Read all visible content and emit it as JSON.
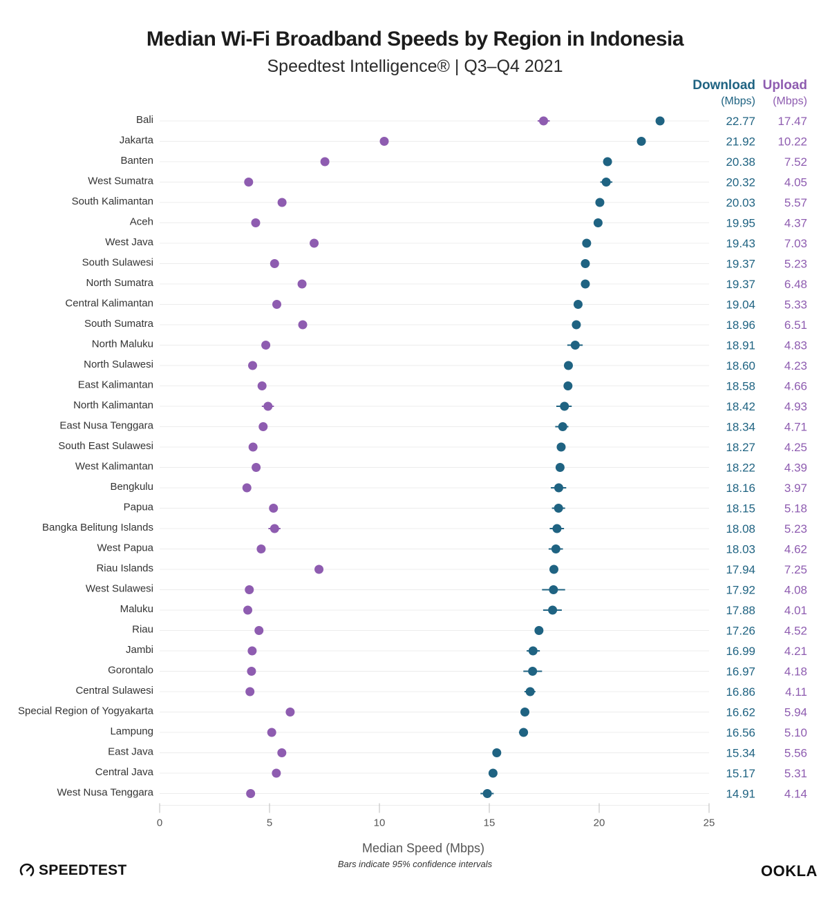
{
  "chart_data": {
    "type": "dot-range",
    "title": "Median Wi-Fi Broadband Speeds by Region in Indonesia",
    "subtitle": "Speedtest Intelligence® | Q3–Q4 2021",
    "xlabel": "Median Speed (Mbps)",
    "xlim": [
      0,
      25
    ],
    "xticks": [
      0,
      5,
      10,
      15,
      20,
      25
    ],
    "footnote": "Bars indicate 95% confidence intervals",
    "columns": {
      "download": {
        "label": "Download",
        "unit": "(Mbps)",
        "color": "#1f6382"
      },
      "upload": {
        "label": "Upload",
        "unit": "(Mbps)",
        "color": "#8e5cb0"
      }
    },
    "regions": [
      {
        "name": "Bali",
        "download": 22.77,
        "download_label": "22.77",
        "download_ci": [
          22.6,
          22.95
        ],
        "upload": 17.47,
        "upload_label": "17.47",
        "upload_ci": [
          17.2,
          17.75
        ]
      },
      {
        "name": "Jakarta",
        "download": 21.92,
        "download_label": "21.92",
        "download_ci": [
          21.85,
          22.0
        ],
        "upload": 10.22,
        "upload_label": "10.22",
        "upload_ci": [
          10.15,
          10.3
        ]
      },
      {
        "name": "Banten",
        "download": 20.38,
        "download_label": "20.38",
        "download_ci": [
          20.3,
          20.46
        ],
        "upload": 7.52,
        "upload_label": "7.52",
        "upload_ci": [
          7.45,
          7.6
        ]
      },
      {
        "name": "West Sumatra",
        "download": 20.32,
        "download_label": "20.32",
        "download_ci": [
          20.05,
          20.6
        ],
        "upload": 4.05,
        "upload_label": "4.05",
        "upload_ci": [
          3.98,
          4.12
        ]
      },
      {
        "name": "South Kalimantan",
        "download": 20.03,
        "download_label": "20.03",
        "download_ci": [
          19.95,
          20.11
        ],
        "upload": 5.57,
        "upload_label": "5.57",
        "upload_ci": [
          5.5,
          5.64
        ]
      },
      {
        "name": "Aceh",
        "download": 19.95,
        "download_label": "19.95",
        "download_ci": [
          19.8,
          20.1
        ],
        "upload": 4.37,
        "upload_label": "4.37",
        "upload_ci": [
          4.3,
          4.44
        ]
      },
      {
        "name": "West Java",
        "download": 19.43,
        "download_label": "19.43",
        "download_ci": [
          19.38,
          19.48
        ],
        "upload": 7.03,
        "upload_label": "7.03",
        "upload_ci": [
          6.98,
          7.08
        ]
      },
      {
        "name": "South Sulawesi",
        "download": 19.37,
        "download_label": "19.37",
        "download_ci": [
          19.28,
          19.46
        ],
        "upload": 5.23,
        "upload_label": "5.23",
        "upload_ci": [
          5.15,
          5.3
        ]
      },
      {
        "name": "North Sumatra",
        "download": 19.37,
        "download_label": "19.37",
        "download_ci": [
          19.3,
          19.44
        ],
        "upload": 6.48,
        "upload_label": "6.48",
        "upload_ci": [
          6.42,
          6.54
        ]
      },
      {
        "name": "Central Kalimantan",
        "download": 19.04,
        "download_label": "19.04",
        "download_ci": [
          18.85,
          19.2
        ],
        "upload": 5.33,
        "upload_label": "5.33",
        "upload_ci": [
          5.25,
          5.41
        ]
      },
      {
        "name": "South Sumatra",
        "download": 18.96,
        "download_label": "18.96",
        "download_ci": [
          18.88,
          19.04
        ],
        "upload": 6.51,
        "upload_label": "6.51",
        "upload_ci": [
          6.45,
          6.57
        ]
      },
      {
        "name": "North Maluku",
        "download": 18.91,
        "download_label": "18.91",
        "download_ci": [
          18.55,
          19.25
        ],
        "upload": 4.83,
        "upload_label": "4.83",
        "upload_ci": [
          4.72,
          4.95
        ]
      },
      {
        "name": "North Sulawesi",
        "download": 18.6,
        "download_label": "18.60",
        "download_ci": [
          18.5,
          18.7
        ],
        "upload": 4.23,
        "upload_label": "4.23",
        "upload_ci": [
          4.15,
          4.31
        ]
      },
      {
        "name": "East Kalimantan",
        "download": 18.58,
        "download_label": "18.58",
        "download_ci": [
          18.5,
          18.66
        ],
        "upload": 4.66,
        "upload_label": "4.66",
        "upload_ci": [
          4.58,
          4.74
        ]
      },
      {
        "name": "North Kalimantan",
        "download": 18.42,
        "download_label": "18.42",
        "download_ci": [
          18.05,
          18.75
        ],
        "upload": 4.93,
        "upload_label": "4.93",
        "upload_ci": [
          4.65,
          5.2
        ]
      },
      {
        "name": "East Nusa Tenggara",
        "download": 18.34,
        "download_label": "18.34",
        "download_ci": [
          18.0,
          18.6
        ],
        "upload": 4.71,
        "upload_label": "4.71",
        "upload_ci": [
          4.6,
          4.82
        ]
      },
      {
        "name": "South East Sulawesi",
        "download": 18.27,
        "download_label": "18.27",
        "download_ci": [
          18.1,
          18.45
        ],
        "upload": 4.25,
        "upload_label": "4.25",
        "upload_ci": [
          4.17,
          4.33
        ]
      },
      {
        "name": "West Kalimantan",
        "download": 18.22,
        "download_label": "18.22",
        "download_ci": [
          18.14,
          18.3
        ],
        "upload": 4.39,
        "upload_label": "4.39",
        "upload_ci": [
          4.32,
          4.46
        ]
      },
      {
        "name": "Bengkulu",
        "download": 18.16,
        "download_label": "18.16",
        "download_ci": [
          17.8,
          18.5
        ],
        "upload": 3.97,
        "upload_label": "3.97",
        "upload_ci": [
          3.9,
          4.04
        ]
      },
      {
        "name": "Papua",
        "download": 18.15,
        "download_label": "18.15",
        "download_ci": [
          17.85,
          18.45
        ],
        "upload": 5.18,
        "upload_label": "5.18",
        "upload_ci": [
          5.1,
          5.26
        ]
      },
      {
        "name": "Bangka Belitung Islands",
        "download": 18.08,
        "download_label": "18.08",
        "download_ci": [
          17.75,
          18.4
        ],
        "upload": 5.23,
        "upload_label": "5.23",
        "upload_ci": [
          4.95,
          5.5
        ]
      },
      {
        "name": "West Papua",
        "download": 18.03,
        "download_label": "18.03",
        "download_ci": [
          17.7,
          18.35
        ],
        "upload": 4.62,
        "upload_label": "4.62",
        "upload_ci": [
          4.54,
          4.7
        ]
      },
      {
        "name": "Riau Islands",
        "download": 17.94,
        "download_label": "17.94",
        "download_ci": [
          17.86,
          18.02
        ],
        "upload": 7.25,
        "upload_label": "7.25",
        "upload_ci": [
          7.18,
          7.32
        ]
      },
      {
        "name": "West Sulawesi",
        "download": 17.92,
        "download_label": "17.92",
        "download_ci": [
          17.4,
          18.45
        ],
        "upload": 4.08,
        "upload_label": "4.08",
        "upload_ci": [
          4.0,
          4.16
        ]
      },
      {
        "name": "Maluku",
        "download": 17.88,
        "download_label": "17.88",
        "download_ci": [
          17.45,
          18.3
        ],
        "upload": 4.01,
        "upload_label": "4.01",
        "upload_ci": [
          3.94,
          4.08
        ]
      },
      {
        "name": "Riau",
        "download": 17.26,
        "download_label": "17.26",
        "download_ci": [
          17.18,
          17.34
        ],
        "upload": 4.52,
        "upload_label": "4.52",
        "upload_ci": [
          4.45,
          4.59
        ]
      },
      {
        "name": "Jambi",
        "download": 16.99,
        "download_label": "16.99",
        "download_ci": [
          16.7,
          17.3
        ],
        "upload": 4.21,
        "upload_label": "4.21",
        "upload_ci": [
          4.13,
          4.29
        ]
      },
      {
        "name": "Gorontalo",
        "download": 16.97,
        "download_label": "16.97",
        "download_ci": [
          16.55,
          17.4
        ],
        "upload": 4.18,
        "upload_label": "4.18",
        "upload_ci": [
          4.1,
          4.26
        ]
      },
      {
        "name": "Central Sulawesi",
        "download": 16.86,
        "download_label": "16.86",
        "download_ci": [
          16.6,
          17.1
        ],
        "upload": 4.11,
        "upload_label": "4.11",
        "upload_ci": [
          4.03,
          4.19
        ]
      },
      {
        "name": "Special Region of Yogyakarta",
        "download": 16.62,
        "download_label": "16.62",
        "download_ci": [
          16.55,
          16.69
        ],
        "upload": 5.94,
        "upload_label": "5.94",
        "upload_ci": [
          5.88,
          6.0
        ]
      },
      {
        "name": "Lampung",
        "download": 16.56,
        "download_label": "16.56",
        "download_ci": [
          16.35,
          16.75
        ],
        "upload": 5.1,
        "upload_label": "5.10",
        "upload_ci": [
          5.03,
          5.17
        ]
      },
      {
        "name": "East Java",
        "download": 15.34,
        "download_label": "15.34",
        "download_ci": [
          15.3,
          15.38
        ],
        "upload": 5.56,
        "upload_label": "5.56",
        "upload_ci": [
          5.51,
          5.61
        ]
      },
      {
        "name": "Central Java",
        "download": 15.17,
        "download_label": "15.17",
        "download_ci": [
          15.12,
          15.22
        ],
        "upload": 5.31,
        "upload_label": "5.31",
        "upload_ci": [
          5.26,
          5.36
        ]
      },
      {
        "name": "West Nusa Tenggara",
        "download": 14.91,
        "download_label": "14.91",
        "download_ci": [
          14.6,
          15.2
        ],
        "upload": 4.14,
        "upload_label": "4.14",
        "upload_ci": [
          4.07,
          4.21
        ]
      }
    ]
  },
  "branding": {
    "left_logo": "SPEEDTEST",
    "left_logo_icon": "gauge-icon",
    "right_logo": "OOKLA"
  }
}
